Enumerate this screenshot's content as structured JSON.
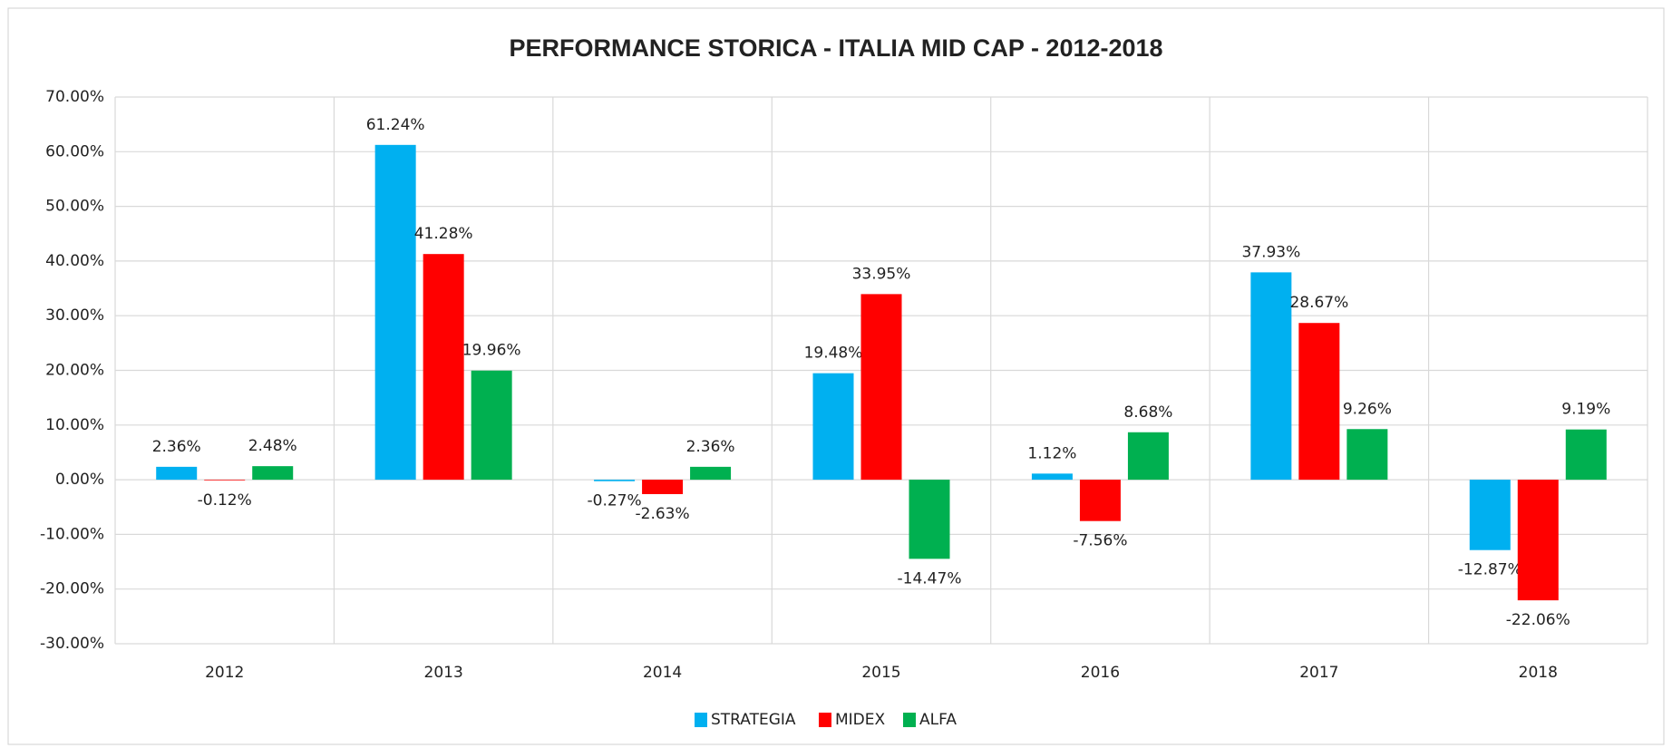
{
  "chart_data": {
    "type": "bar",
    "title": "PERFORMANCE STORICA - ITALIA MID CAP - 2012-2018",
    "categories": [
      "2012",
      "2013",
      "2014",
      "2015",
      "2016",
      "2017",
      "2018"
    ],
    "series": [
      {
        "name": "STRATEGIA",
        "color": "#00b0f0",
        "values": [
          2.36,
          61.24,
          -0.27,
          19.48,
          1.12,
          37.93,
          -12.87
        ],
        "value_labels": [
          "2.36%",
          "61.24%",
          "-0.27%",
          "19.48%",
          "1.12%",
          "37.93%",
          "-12.87%"
        ]
      },
      {
        "name": "MIDEX",
        "color": "#ff0000",
        "values": [
          -0.12,
          41.28,
          -2.63,
          33.95,
          -7.56,
          28.67,
          -22.06
        ],
        "value_labels": [
          "-0.12%",
          "41.28%",
          "-2.63%",
          "33.95%",
          "-7.56%",
          "28.67%",
          "-22.06%"
        ]
      },
      {
        "name": "ALFA",
        "color": "#00b050",
        "values": [
          2.48,
          19.96,
          2.36,
          -14.47,
          8.68,
          9.26,
          9.19
        ],
        "value_labels": [
          "2.48%",
          "19.96%",
          "2.36%",
          "-14.47%",
          "8.68%",
          "9.26%",
          "9.19%"
        ]
      }
    ],
    "ylim": [
      -30,
      70
    ],
    "yticks": [
      {
        "value": -30,
        "label": "-30.00%"
      },
      {
        "value": -20,
        "label": "-20.00%"
      },
      {
        "value": -10,
        "label": "-10.00%"
      },
      {
        "value": 0,
        "label": "0.00%"
      },
      {
        "value": 10,
        "label": "10.00%"
      },
      {
        "value": 20,
        "label": "20.00%"
      },
      {
        "value": 30,
        "label": "30.00%"
      },
      {
        "value": 40,
        "label": "40.00%"
      },
      {
        "value": 50,
        "label": "50.00%"
      },
      {
        "value": 60,
        "label": "60.00%"
      },
      {
        "value": 70,
        "label": "70.00%"
      }
    ],
    "grid": true,
    "legend": "bottom"
  }
}
